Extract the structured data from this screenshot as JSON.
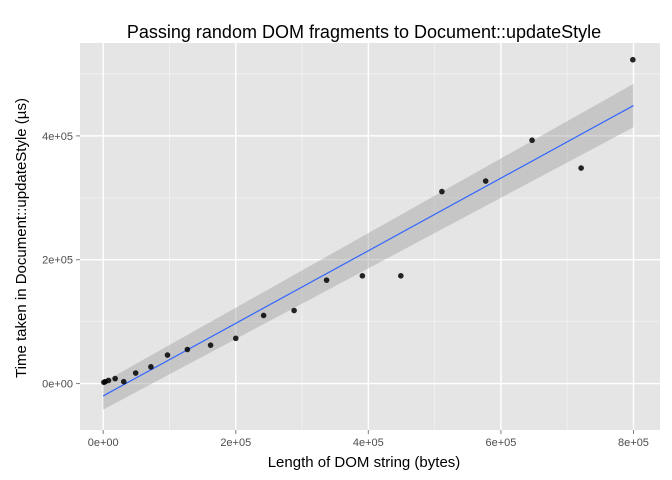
{
  "chart_data": {
    "type": "scatter",
    "title": "Passing random DOM fragments to Document::updateStyle",
    "xlabel": "Length of DOM string (bytes)",
    "ylabel": "Time taken in Document::updateStyle (µs)",
    "xlim": [
      -35000,
      840000
    ],
    "ylim": [
      -75000,
      550000
    ],
    "x_ticks": [
      {
        "value": 0,
        "label": "0e+00"
      },
      {
        "value": 200000,
        "label": "2e+05"
      },
      {
        "value": 400000,
        "label": "4e+05"
      },
      {
        "value": 600000,
        "label": "6e+05"
      },
      {
        "value": 800000,
        "label": "8e+05"
      }
    ],
    "y_ticks": [
      {
        "value": 0,
        "label": "0e+00"
      },
      {
        "value": 200000,
        "label": "2e+05"
      },
      {
        "value": 400000,
        "label": "4e+05"
      }
    ],
    "grid": true,
    "points": [
      {
        "x": 1000,
        "y": 2000
      },
      {
        "x": 3000,
        "y": 3000
      },
      {
        "x": 8000,
        "y": 5000
      },
      {
        "x": 18000,
        "y": 8000
      },
      {
        "x": 31000,
        "y": 3000
      },
      {
        "x": 49000,
        "y": 17000
      },
      {
        "x": 72000,
        "y": 27000
      },
      {
        "x": 97000,
        "y": 46000
      },
      {
        "x": 127000,
        "y": 55000
      },
      {
        "x": 162000,
        "y": 62000
      },
      {
        "x": 200000,
        "y": 73000
      },
      {
        "x": 242000,
        "y": 110000
      },
      {
        "x": 288000,
        "y": 118000
      },
      {
        "x": 337000,
        "y": 167000
      },
      {
        "x": 391000,
        "y": 174000
      },
      {
        "x": 449000,
        "y": 174000
      },
      {
        "x": 511000,
        "y": 310000
      },
      {
        "x": 577000,
        "y": 327000
      },
      {
        "x": 647000,
        "y": 393000
      },
      {
        "x": 721000,
        "y": 348000
      },
      {
        "x": 799000,
        "y": 523000
      }
    ],
    "trend": {
      "method": "linear fit with confidence band",
      "color": "#3366FF",
      "band_color": "#999999",
      "x": [
        0,
        800000
      ],
      "y": [
        -20000,
        449000
      ],
      "band_lower": [
        -42000,
        414000
      ],
      "band_upper": [
        2000,
        484000
      ]
    },
    "colors": {
      "panel": "#E5E5E5",
      "grid_major": "#FFFFFF",
      "grid_minor": "#F2F2F2",
      "point": "#000000"
    }
  }
}
